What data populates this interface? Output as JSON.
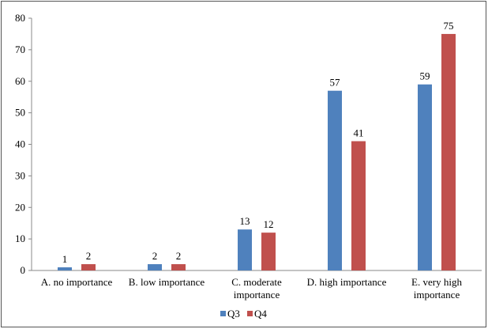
{
  "chart_data": {
    "type": "bar",
    "categories": [
      [
        "A. no importance"
      ],
      [
        "B. low importance"
      ],
      [
        "C. moderate",
        "importance"
      ],
      [
        "D. high importance"
      ],
      [
        "E. very high",
        "importance"
      ]
    ],
    "series": [
      {
        "name": "Q3",
        "color": "#4F81BD",
        "values": [
          1,
          2,
          13,
          57,
          59
        ]
      },
      {
        "name": "Q4",
        "color": "#C0504D",
        "values": [
          2,
          2,
          12,
          41,
          75
        ]
      }
    ],
    "ylim": [
      0,
      80
    ],
    "yticks": [
      0,
      10,
      20,
      30,
      40,
      50,
      60,
      70,
      80
    ],
    "grid": false,
    "data_labels": true,
    "legend_position": "bottom"
  }
}
